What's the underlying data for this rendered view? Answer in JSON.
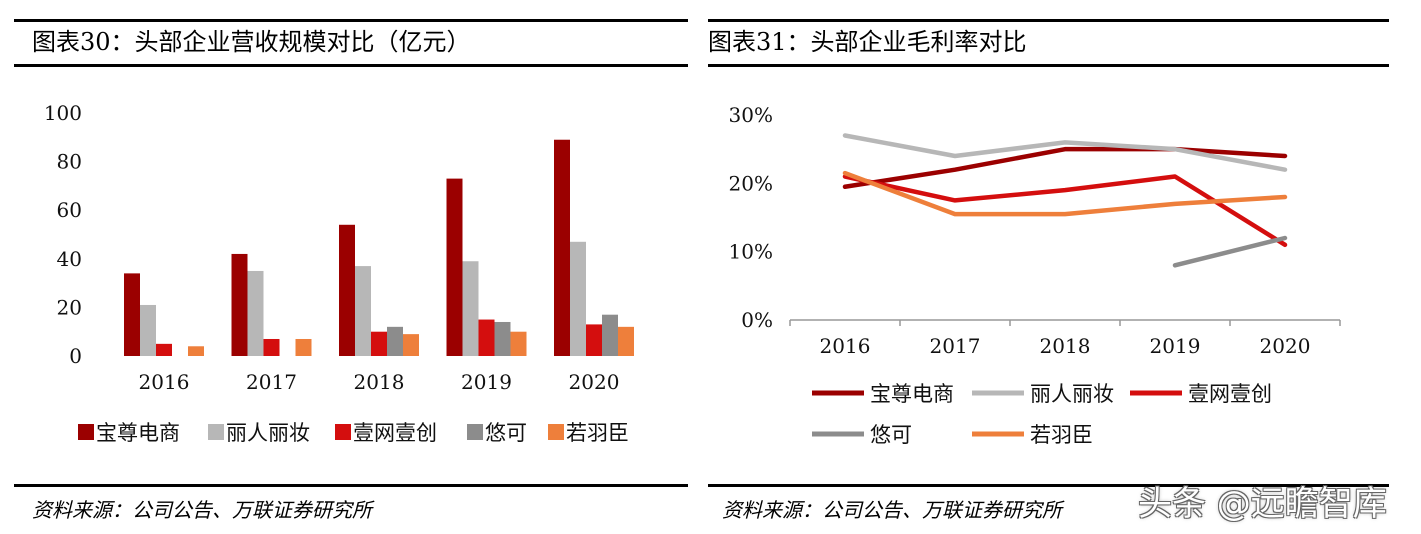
{
  "left_panel": {
    "title": "图表30：头部企业营收规模对比（亿元）",
    "source": "资料来源：公司公告、万联证券研究所"
  },
  "right_panel": {
    "title": "图表31：头部企业毛利率对比",
    "source": "资料来源：公司公告、万联证券研究所"
  },
  "watermark": "头条 @远瞻智库",
  "chart_data": [
    {
      "type": "bar",
      "title": "头部企业营收规模对比（亿元）",
      "categories": [
        "2016",
        "2017",
        "2018",
        "2019",
        "2020"
      ],
      "ylim": [
        0,
        100
      ],
      "yticks": [
        "0",
        "20",
        "40",
        "60",
        "80",
        "100"
      ],
      "series": [
        {
          "name": "宝尊电商",
          "color": "#9B0000",
          "values": [
            34,
            42,
            54,
            73,
            89
          ]
        },
        {
          "name": "丽人丽妆",
          "color": "#B7B7B7",
          "values": [
            21,
            35,
            37,
            39,
            47
          ]
        },
        {
          "name": "壹网壹创",
          "color": "#D40E0E",
          "values": [
            5,
            7,
            10,
            15,
            13
          ]
        },
        {
          "name": "悠可",
          "color": "#8C8C8C",
          "values": [
            null,
            null,
            12,
            14,
            17
          ]
        },
        {
          "name": "若羽臣",
          "color": "#EE7F3B",
          "values": [
            4,
            7,
            9,
            10,
            12
          ]
        }
      ]
    },
    {
      "type": "line",
      "title": "头部企业毛利率对比",
      "categories": [
        "2016",
        "2017",
        "2018",
        "2019",
        "2020"
      ],
      "ylim": [
        0,
        30
      ],
      "yticks": [
        "0%",
        "10%",
        "20%",
        "30%"
      ],
      "series": [
        {
          "name": "宝尊电商",
          "color": "#9B0000",
          "values": [
            19.5,
            22,
            25,
            25,
            24
          ]
        },
        {
          "name": "丽人丽妆",
          "color": "#B7B7B7",
          "values": [
            27,
            24,
            26,
            25,
            22
          ]
        },
        {
          "name": "壹网壹创",
          "color": "#D40E0E",
          "values": [
            21,
            17.5,
            19,
            21,
            11
          ]
        },
        {
          "name": "悠可",
          "color": "#8C8C8C",
          "values": [
            null,
            null,
            null,
            8,
            12
          ]
        },
        {
          "name": "若羽臣",
          "color": "#EE7F3B",
          "values": [
            21.5,
            15.5,
            15.5,
            17,
            18
          ]
        }
      ]
    }
  ]
}
